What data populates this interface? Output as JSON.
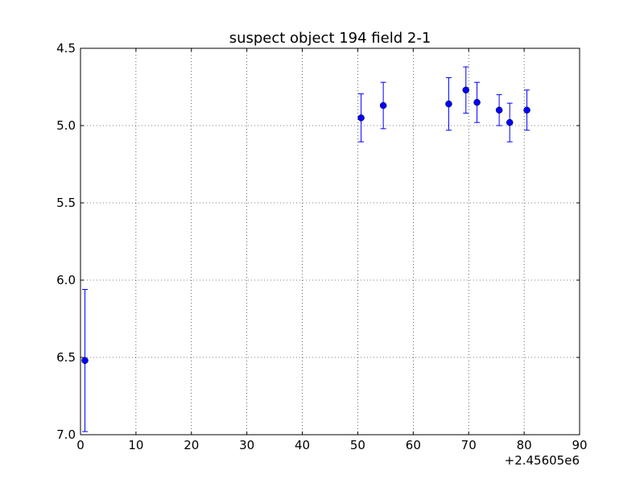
{
  "chart_data": {
    "type": "scatter",
    "title": "suspect object 194 field 2-1",
    "xlabel": "",
    "ylabel": "",
    "x_offset_label": "+2.45605e6",
    "xlim": [
      0,
      90
    ],
    "ylim": [
      7.0,
      4.5
    ],
    "y_inverted": true,
    "grid": true,
    "x_ticks": [
      0,
      10,
      20,
      30,
      40,
      50,
      60,
      70,
      80,
      90
    ],
    "y_ticks": [
      4.5,
      5.0,
      5.5,
      6.0,
      6.5,
      7.0
    ],
    "x_tick_labels": [
      "0",
      "10",
      "20",
      "30",
      "40",
      "50",
      "60",
      "70",
      "80",
      "90"
    ],
    "y_tick_labels": [
      "4.5",
      "5.0",
      "5.5",
      "6.0",
      "6.5",
      "7.0"
    ],
    "series": [
      {
        "marker": "circle",
        "color": "#0000ff",
        "points": [
          {
            "x": 0.8,
            "y": 6.52,
            "err": 0.46
          },
          {
            "x": 50.6,
            "y": 4.95,
            "err": 0.155
          },
          {
            "x": 54.6,
            "y": 4.87,
            "err": 0.15
          },
          {
            "x": 66.4,
            "y": 4.86,
            "err": 0.17
          },
          {
            "x": 69.5,
            "y": 4.77,
            "err": 0.15
          },
          {
            "x": 71.5,
            "y": 4.85,
            "err": 0.13
          },
          {
            "x": 75.5,
            "y": 4.9,
            "err": 0.1
          },
          {
            "x": 77.4,
            "y": 4.98,
            "err": 0.125
          },
          {
            "x": 80.5,
            "y": 4.9,
            "err": 0.13
          }
        ]
      }
    ]
  }
}
